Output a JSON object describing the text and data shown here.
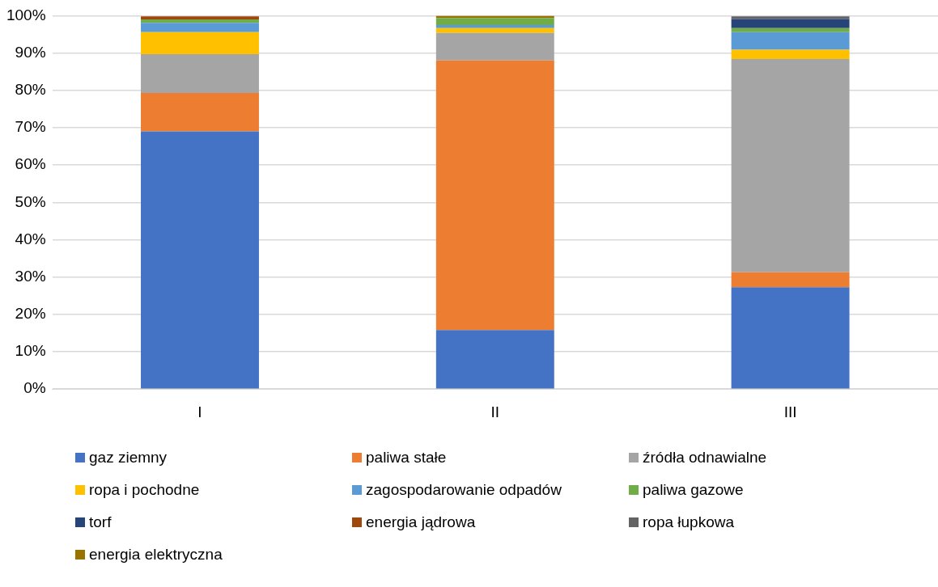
{
  "chart_data": {
    "type": "bar",
    "stacked": true,
    "categories": [
      "I",
      "II",
      "III"
    ],
    "series": [
      {
        "name": "gaz ziemny",
        "color": "#4472c4",
        "values": [
          69.0,
          15.8,
          27.3
        ]
      },
      {
        "name": "paliwa stałe",
        "color": "#ed7d31",
        "values": [
          10.3,
          72.2,
          4.0
        ]
      },
      {
        "name": "źródła odnawialne",
        "color": "#a5a5a5",
        "values": [
          10.4,
          7.4,
          57.1
        ]
      },
      {
        "name": "ropa i pochodne",
        "color": "#ffc000",
        "values": [
          5.9,
          1.3,
          2.5
        ]
      },
      {
        "name": "zagospodarowanie odpadów",
        "color": "#5b9bd5",
        "values": [
          2.5,
          0.8,
          4.7
        ]
      },
      {
        "name": "paliwa gazowe",
        "color": "#70ad47",
        "values": [
          0.9,
          1.9,
          1.1
        ]
      },
      {
        "name": "torf",
        "color": "#264478",
        "values": [
          0,
          0,
          2.4
        ]
      },
      {
        "name": "energia jądrowa",
        "color": "#9e480e",
        "values": [
          0.8,
          0,
          0
        ]
      },
      {
        "name": "ropa łupkowa",
        "color": "#636363",
        "values": [
          0,
          0,
          0.7
        ]
      },
      {
        "name": "energia elektryczna",
        "color": "#997300",
        "values": [
          null,
          0.6,
          null
        ]
      }
    ],
    "ylim": [
      0,
      100
    ],
    "yticks": [
      {
        "value": 0,
        "label": "0%"
      },
      {
        "value": 10,
        "label": "10%"
      },
      {
        "value": 20,
        "label": "20%"
      },
      {
        "value": 30,
        "label": "30%"
      },
      {
        "value": 40,
        "label": "40%"
      },
      {
        "value": 50,
        "label": "50%"
      },
      {
        "value": 60,
        "label": "60%"
      },
      {
        "value": 70,
        "label": "70%"
      },
      {
        "value": 80,
        "label": "80%"
      },
      {
        "value": 90,
        "label": "90%"
      },
      {
        "value": 100,
        "label": "100%"
      }
    ],
    "grid": "y",
    "legend": "bottom"
  }
}
